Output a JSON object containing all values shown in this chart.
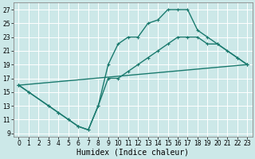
{
  "xlabel": "Humidex (Indice chaleur)",
  "background_color": "#cce8e8",
  "grid_color": "#ffffff",
  "line_color": "#1a7a6e",
  "xlim": [
    -0.5,
    23.5
  ],
  "ylim": [
    8.5,
    28
  ],
  "xticks": [
    0,
    1,
    2,
    3,
    4,
    5,
    6,
    7,
    8,
    9,
    10,
    11,
    12,
    13,
    14,
    15,
    16,
    17,
    18,
    19,
    20,
    21,
    22,
    23
  ],
  "yticks": [
    9,
    11,
    13,
    15,
    17,
    19,
    21,
    23,
    25,
    27
  ],
  "line1_x": [
    0,
    1,
    3,
    4,
    5,
    6,
    7,
    8,
    9,
    10,
    11,
    12,
    13,
    14,
    15,
    16,
    17,
    18,
    19,
    20,
    22,
    23
  ],
  "line1_y": [
    16,
    15,
    13,
    12,
    11,
    10,
    9.5,
    13,
    19,
    22,
    23,
    23,
    25,
    25.5,
    27,
    27,
    27,
    24,
    23,
    22,
    20,
    19
  ],
  "line2_x": [
    0,
    1,
    3,
    4,
    5,
    6,
    7,
    8,
    9,
    10,
    11,
    12,
    13,
    14,
    15,
    16,
    17,
    18,
    19,
    20,
    21,
    22,
    23
  ],
  "line2_y": [
    16,
    15,
    13,
    12,
    11,
    10,
    9.5,
    13,
    17,
    17,
    18,
    19,
    20,
    21,
    22,
    23,
    23,
    23,
    22,
    22,
    21,
    20,
    19
  ],
  "line3_x": [
    0,
    23
  ],
  "line3_y": [
    16,
    19
  ],
  "marker_size": 2.5,
  "linewidth": 1.0,
  "tick_fontsize": 5.5,
  "xlabel_fontsize": 7.0
}
